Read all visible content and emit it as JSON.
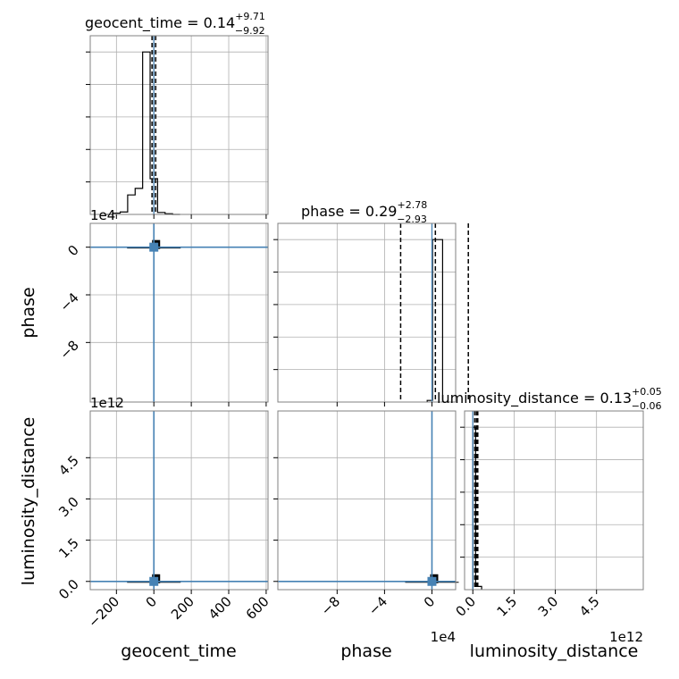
{
  "chart_data": [
    {
      "type": "histogram",
      "panel": "geocent_time",
      "title": "geocent_time = 0.14",
      "title_upper": "+9.71",
      "title_lower": "−9.92",
      "xlim": [
        -340,
        610
      ],
      "bin_edges": [
        -260,
        -220,
        -180,
        -140,
        -100,
        -60,
        -20,
        20,
        60,
        100,
        140
      ],
      "counts": [
        0,
        0.008,
        0.015,
        0.12,
        0.16,
        1.0,
        0.22,
        0.012,
        0.004,
        0
      ],
      "quantile_lines": [
        -9.78,
        0.14,
        9.85
      ],
      "xticks": [
        -200,
        0,
        200,
        400,
        600
      ]
    },
    {
      "type": "histogram",
      "panel": "phase",
      "title": "phase = 0.29",
      "title_upper": "+2.78",
      "title_lower": "−2.93",
      "xlim": [
        -13,
        2
      ],
      "bin_edges": [
        -0.4,
        0.05,
        0.9
      ],
      "counts": [
        0.01,
        1.0
      ],
      "quantile_lines": [
        -2.64,
        0.29,
        3.07
      ],
      "xticks": [
        -8,
        -4,
        0
      ],
      "offset_text": "1e4"
    },
    {
      "type": "histogram",
      "panel": "luminosity_distance",
      "title": "luminosity_distance = 0.13",
      "title_upper": "+0.05",
      "title_lower": "−0.06",
      "xlim": [
        -0.3,
        6.2
      ],
      "bin_edges": [
        0.0,
        0.1,
        0.32
      ],
      "counts": [
        1.0,
        0.02
      ],
      "quantile_lines": [
        0.07,
        0.13,
        0.18
      ],
      "xticks": [
        0.0,
        1.5,
        3.0,
        4.5
      ],
      "tick_labels": [
        "0.0",
        "1.5",
        "3.0",
        "4.5"
      ],
      "offset_text": "1e12"
    },
    {
      "type": "scatter",
      "panel": "phase vs geocent_time",
      "x_param": "geocent_time",
      "y_param": "phase",
      "xlim": [
        -340,
        610
      ],
      "ylim": [
        -13,
        2
      ],
      "truth": {
        "x": 0,
        "y": 0
      },
      "yticks": [
        0,
        -4,
        -8
      ],
      "y_offset_text": "1e4"
    },
    {
      "type": "scatter",
      "panel": "luminosity_distance vs geocent_time",
      "x_param": "geocent_time",
      "y_param": "luminosity_distance",
      "xlim": [
        -340,
        610
      ],
      "ylim": [
        -0.3,
        6.2
      ],
      "truth": {
        "x": 0,
        "y": 0
      },
      "yticks": [
        0.0,
        1.5,
        3.0,
        4.5
      ],
      "ytick_labels": [
        "0.0",
        "1.5",
        "3.0",
        "4.5"
      ],
      "y_offset_text": "1e12"
    },
    {
      "type": "scatter",
      "panel": "luminosity_distance vs phase",
      "x_param": "phase",
      "y_param": "luminosity_distance",
      "xlim": [
        -13,
        2
      ],
      "ylim": [
        -0.3,
        6.2
      ],
      "truth": {
        "x": 0,
        "y": 0
      }
    }
  ],
  "axis_labels": {
    "geocent_time": "geocent_time",
    "phase": "phase",
    "luminosity_distance": "luminosity_distance"
  },
  "colors": {
    "truth": "#4682b4",
    "hist": "#000000",
    "grid": "#b0b0b0",
    "spine": "#808080",
    "density": "#000000"
  }
}
